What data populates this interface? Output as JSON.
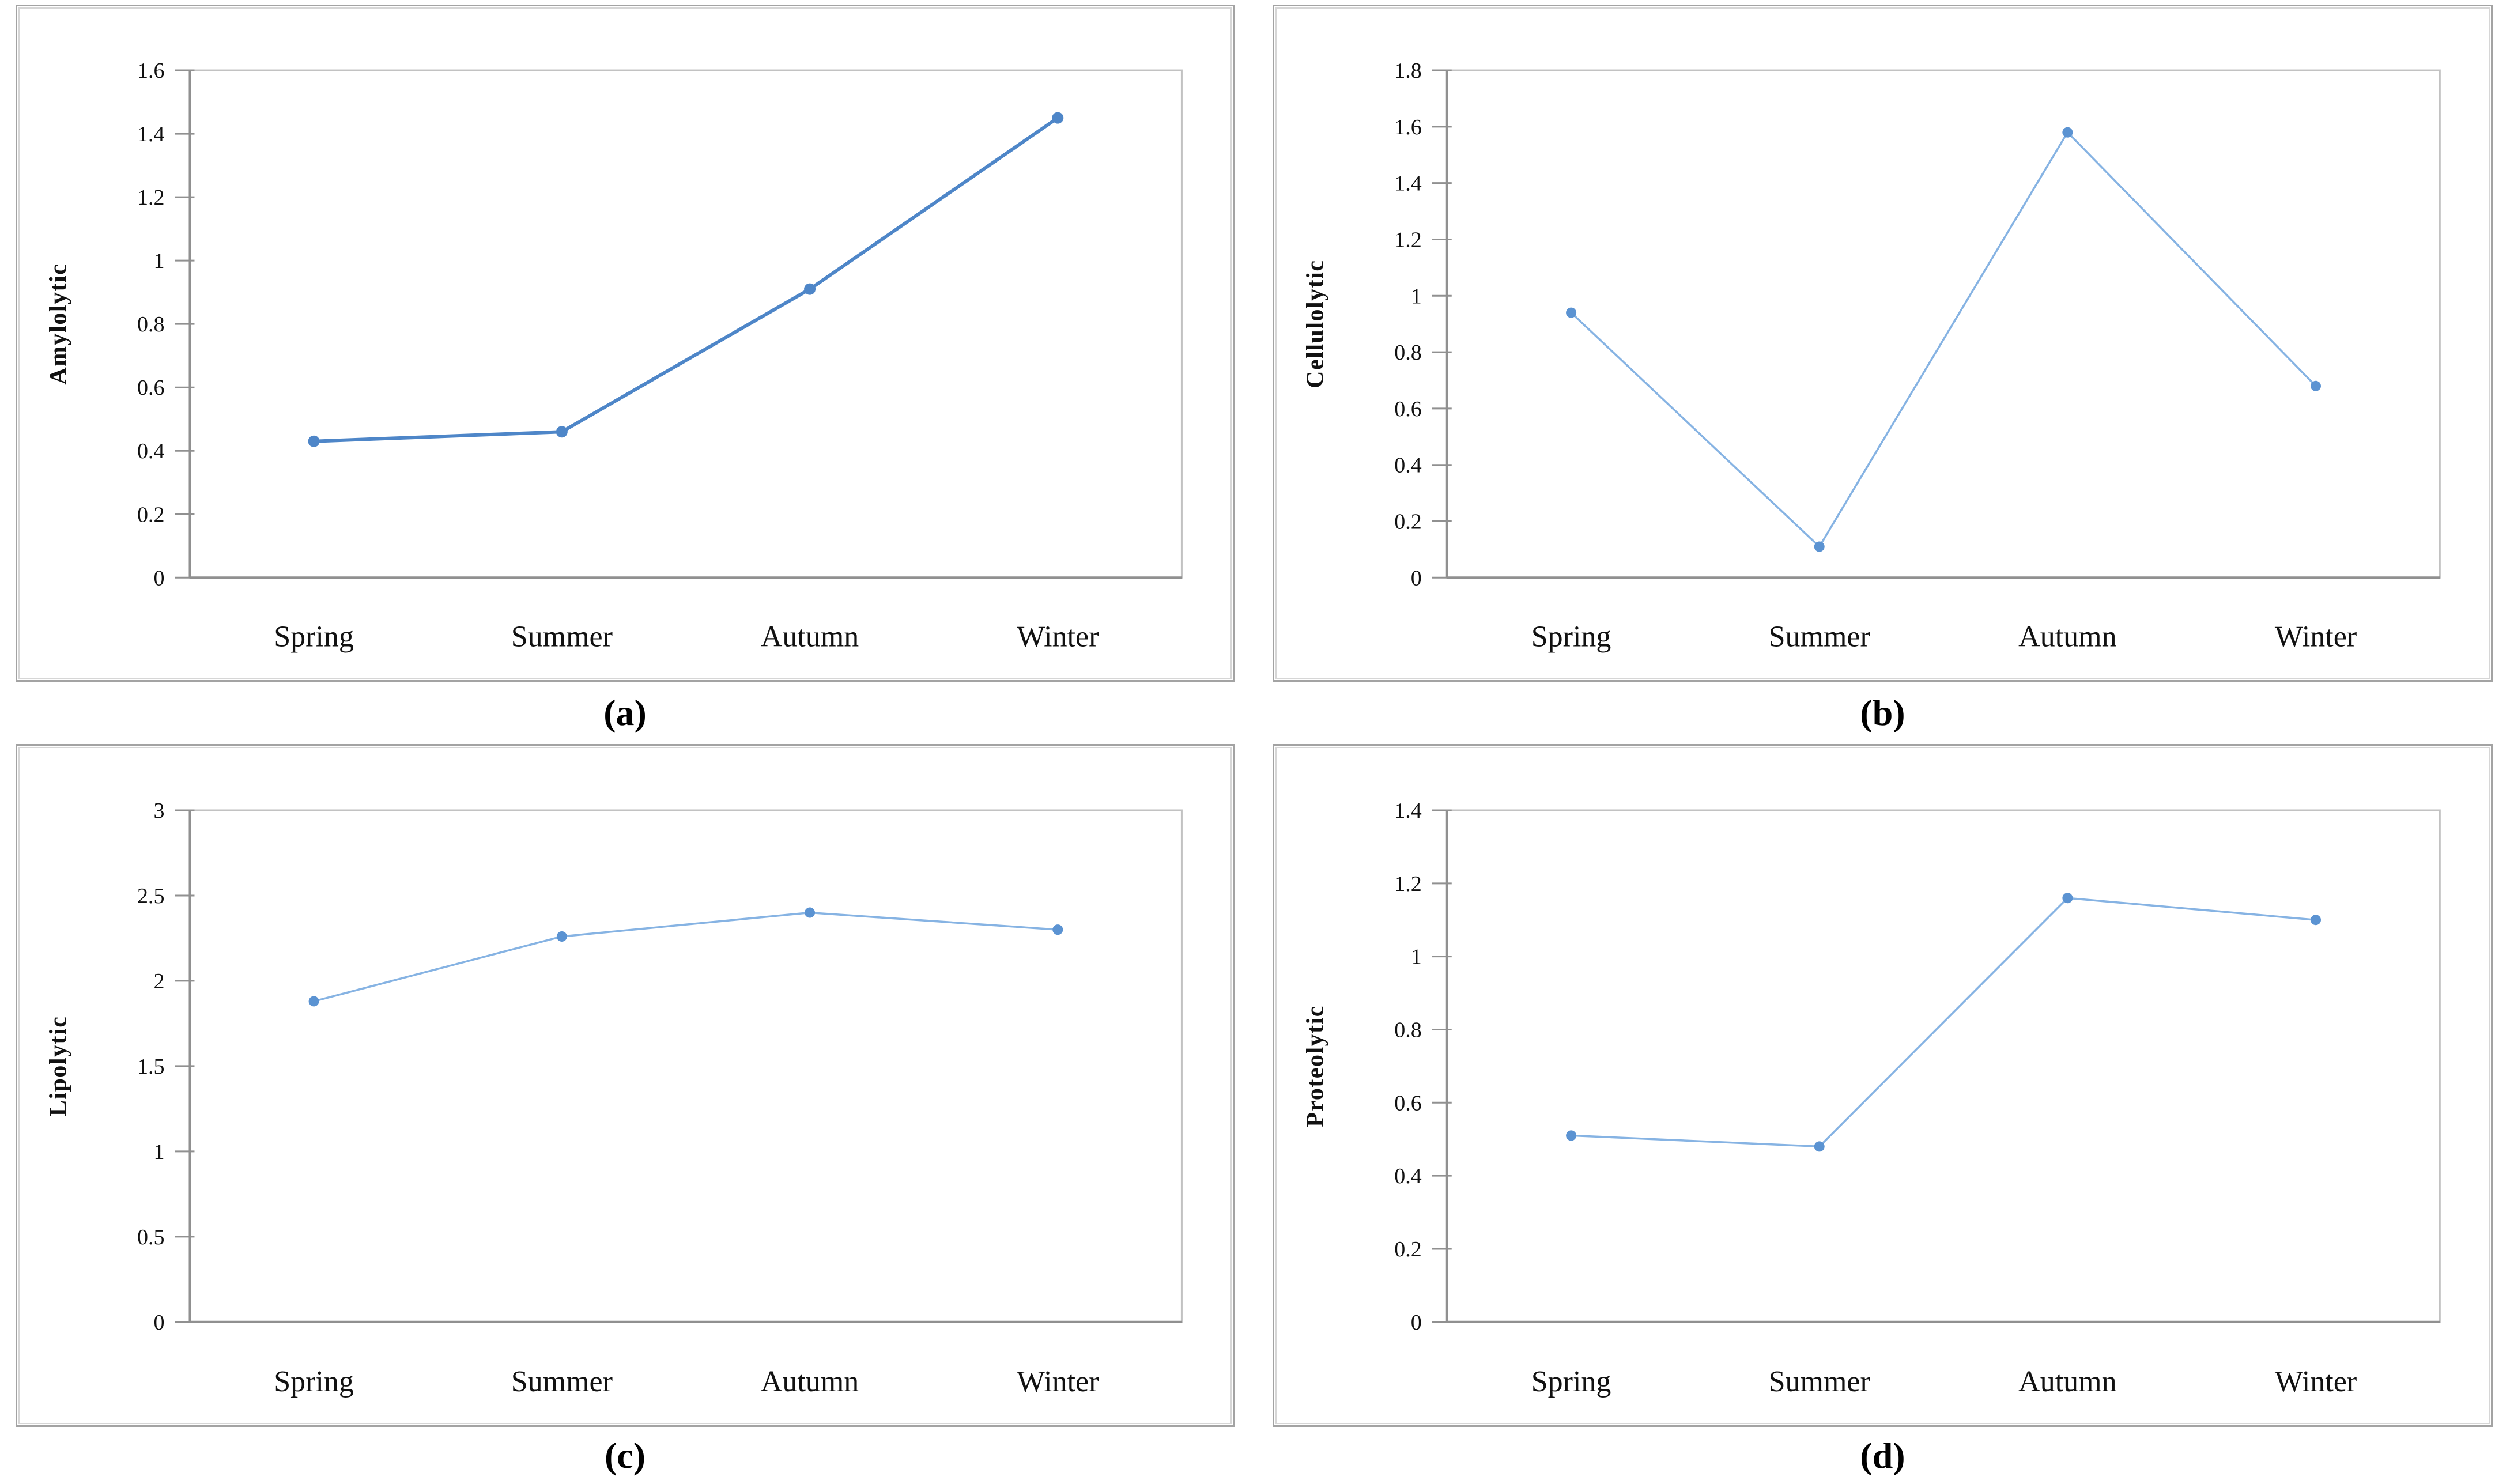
{
  "figure": {
    "description": "Four-panel seasonal enzyme activity line charts",
    "background_color": "#ffffff",
    "panel_border_color": "#a3a3a3",
    "axis_color": "#909090",
    "text_color": "#000000"
  },
  "chart_data": [
    {
      "type": "line",
      "panel_label": "a",
      "caption": "(a)",
      "title": "",
      "xlabel": "",
      "ylabel": "Amylolytic",
      "categories": [
        "Spring",
        "Summer",
        "Autumn",
        "Winter"
      ],
      "values": [
        0.43,
        0.46,
        0.91,
        1.45
      ],
      "ylim": [
        0,
        1.6
      ],
      "ytick_step": 0.2,
      "ytick_labels": [
        "0",
        "0.2",
        "0.4",
        "0.6",
        "0.8",
        "1",
        "1.2",
        "1.4",
        "1.6"
      ],
      "grid": false,
      "legend_position": "none",
      "line_color": "#4e86c8",
      "marker_color": "#4e86c8",
      "line_width": 6,
      "marker_radius": 10
    },
    {
      "type": "line",
      "panel_label": "b",
      "caption": "(b)",
      "title": "",
      "xlabel": "",
      "ylabel": "Cellulolytic",
      "categories": [
        "Spring",
        "Summer",
        "Autumn",
        "Winter"
      ],
      "values": [
        0.94,
        0.11,
        1.58,
        0.68
      ],
      "ylim": [
        0,
        1.8
      ],
      "ytick_step": 0.2,
      "ytick_labels": [
        "0",
        "0.2",
        "0.4",
        "0.6",
        "0.8",
        "1",
        "1.2",
        "1.4",
        "1.6",
        "1.8"
      ],
      "grid": false,
      "legend_position": "none",
      "line_color": "#86b3e3",
      "marker_color": "#5b93d2",
      "line_width": 3.5,
      "marker_radius": 9
    },
    {
      "type": "line",
      "panel_label": "c",
      "caption": "(c)",
      "title": "",
      "xlabel": "",
      "ylabel": "Lipolytic",
      "categories": [
        "Spring",
        "Summer",
        "Autumn",
        "Winter"
      ],
      "values": [
        1.88,
        2.26,
        2.4,
        2.3
      ],
      "ylim": [
        0,
        3
      ],
      "ytick_step": 0.5,
      "ytick_labels": [
        "0",
        "0.5",
        "1",
        "1.5",
        "2",
        "2.5",
        "3"
      ],
      "grid": false,
      "legend_position": "none",
      "line_color": "#86b3e3",
      "marker_color": "#5b93d2",
      "line_width": 3.5,
      "marker_radius": 9
    },
    {
      "type": "line",
      "panel_label": "d",
      "caption": "(d)",
      "title": "",
      "xlabel": "",
      "ylabel": "Proteolytic",
      "categories": [
        "Spring",
        "Summer",
        "Autumn",
        "Winter"
      ],
      "values": [
        0.51,
        0.48,
        1.16,
        1.1
      ],
      "ylim": [
        0,
        1.4
      ],
      "ytick_step": 0.2,
      "ytick_labels": [
        "0",
        "0.2",
        "0.4",
        "0.6",
        "0.8",
        "1",
        "1.2",
        "1.4"
      ],
      "grid": false,
      "legend_position": "none",
      "line_color": "#86b3e3",
      "marker_color": "#5b93d2",
      "line_width": 3.5,
      "marker_radius": 9
    }
  ]
}
